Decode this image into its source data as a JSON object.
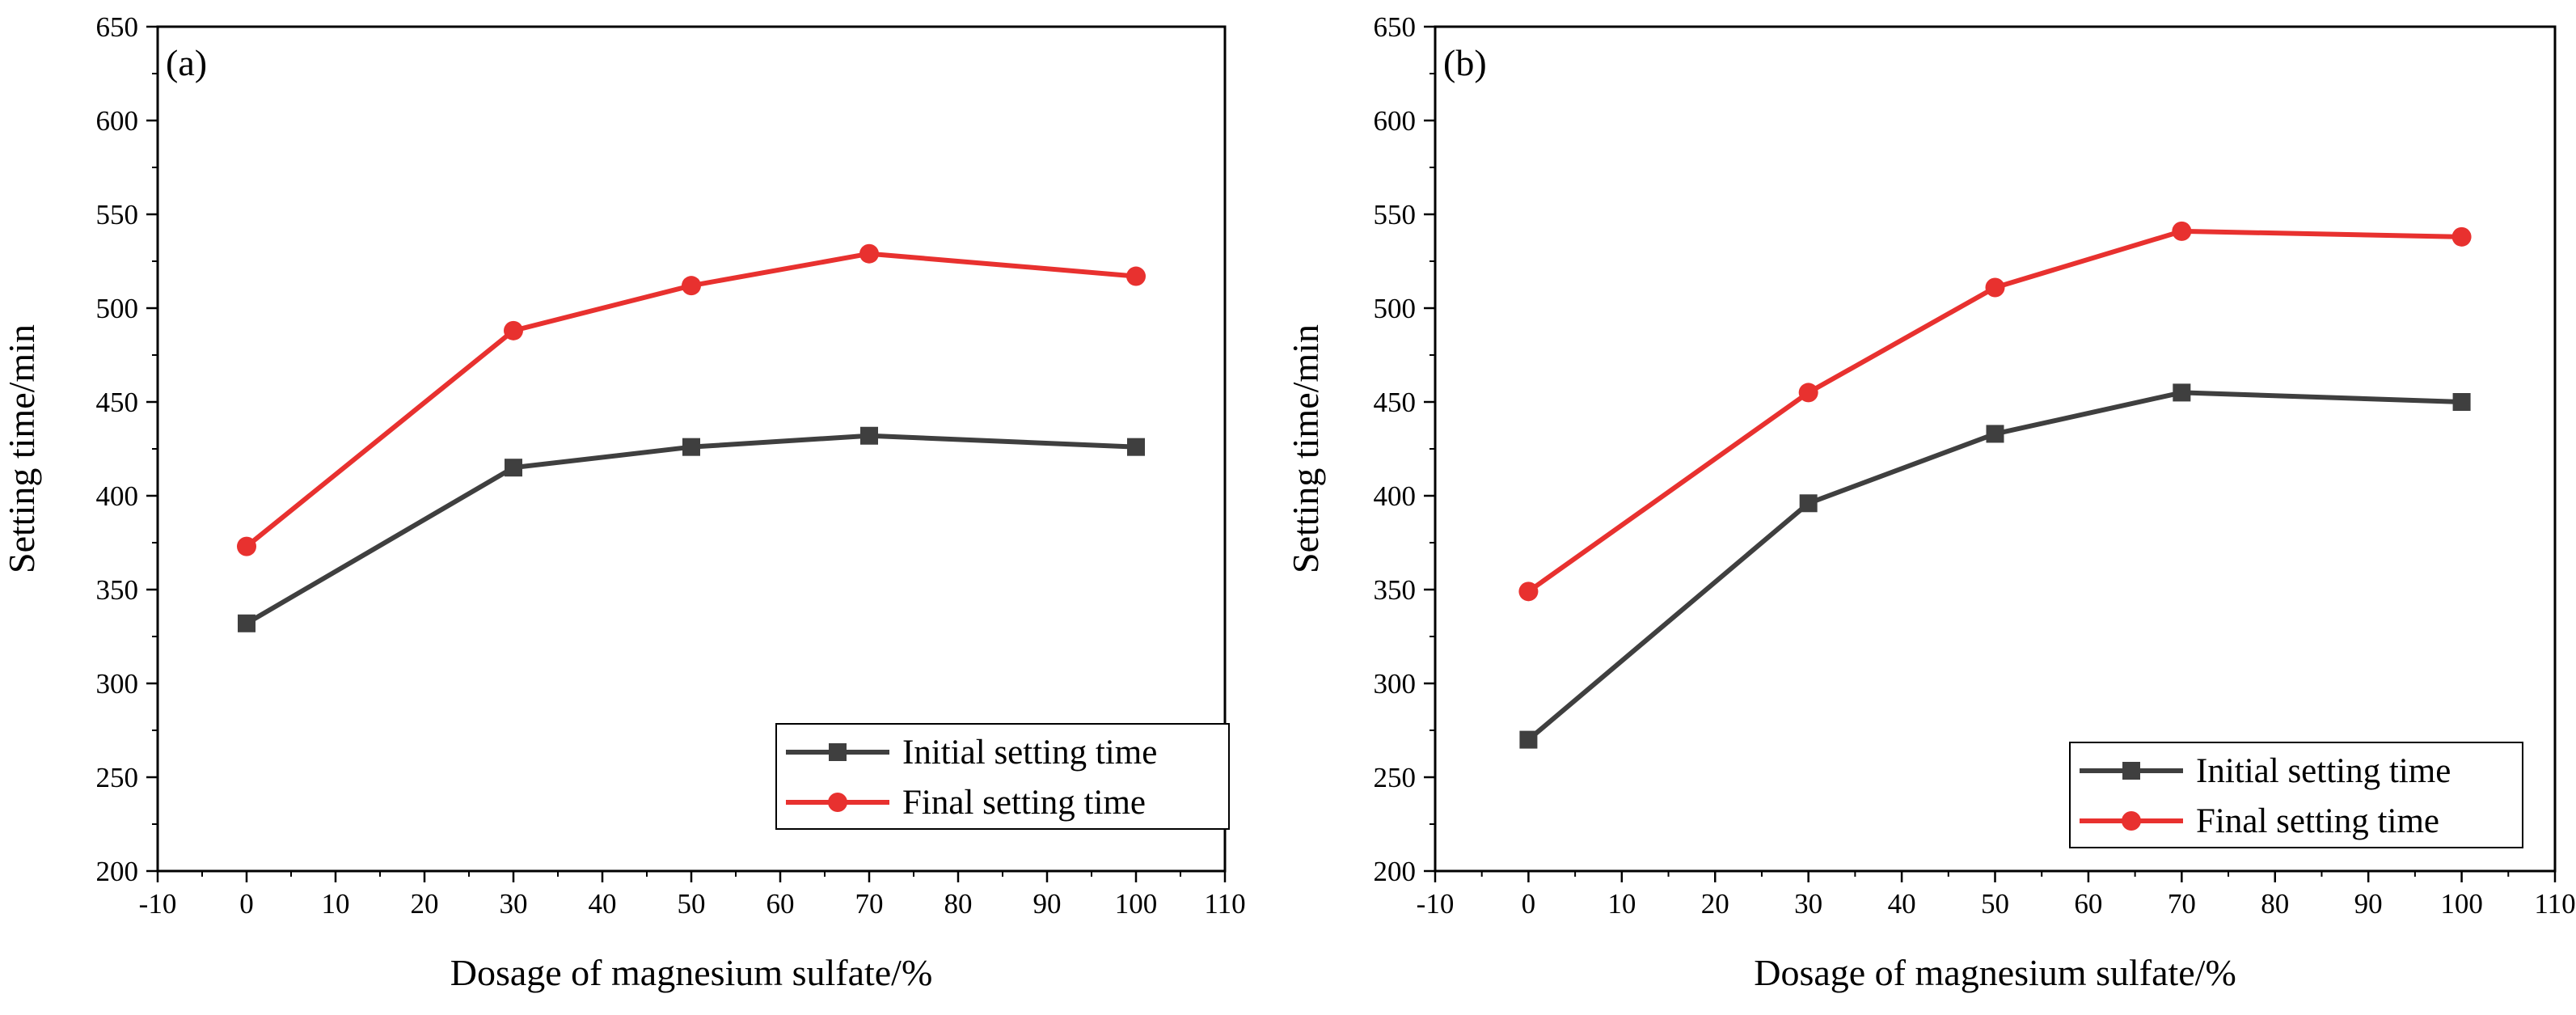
{
  "chart_data": [
    {
      "type": "line",
      "panel_label": "(a)",
      "title": "",
      "xlabel": "Dosage of magnesium sulfate/%",
      "ylabel": "Setting time/min",
      "xlim": [
        -10,
        110
      ],
      "ylim": [
        200,
        650
      ],
      "xticks": [
        "-10",
        "0",
        "10",
        "20",
        "30",
        "40",
        "50",
        "60",
        "70",
        "80",
        "90",
        "100",
        "110"
      ],
      "yticks": [
        "200",
        "250",
        "300",
        "350",
        "400",
        "450",
        "500",
        "550",
        "600",
        "650"
      ],
      "legend_position": "bottom-right",
      "x": [
        0,
        30,
        50,
        70,
        100
      ],
      "series": [
        {
          "name": "Initial setting time",
          "values": [
            332,
            415,
            426,
            432,
            426
          ],
          "color": "#3f3f3f",
          "marker": "square"
        },
        {
          "name": "Final setting time",
          "values": [
            373,
            488,
            512,
            529,
            517
          ],
          "color": "#e8312f",
          "marker": "circle"
        }
      ]
    },
    {
      "type": "line",
      "panel_label": "(b)",
      "title": "",
      "xlabel": "Dosage of magnesium sulfate/%",
      "ylabel": "Setting time/min",
      "xlim": [
        -10,
        110
      ],
      "ylim": [
        200,
        650
      ],
      "xticks": [
        "-10",
        "0",
        "10",
        "20",
        "30",
        "40",
        "50",
        "60",
        "70",
        "80",
        "90",
        "100",
        "110"
      ],
      "yticks": [
        "200",
        "250",
        "300",
        "350",
        "400",
        "450",
        "500",
        "550",
        "600",
        "650"
      ],
      "legend_position": "bottom-right",
      "x": [
        0,
        30,
        50,
        70,
        100
      ],
      "series": [
        {
          "name": "Initial setting time",
          "values": [
            270,
            396,
            433,
            455,
            450
          ],
          "color": "#3f3f3f",
          "marker": "square"
        },
        {
          "name": "Final setting time",
          "values": [
            349,
            455,
            511,
            541,
            538
          ],
          "color": "#e8312f",
          "marker": "circle"
        }
      ]
    }
  ]
}
